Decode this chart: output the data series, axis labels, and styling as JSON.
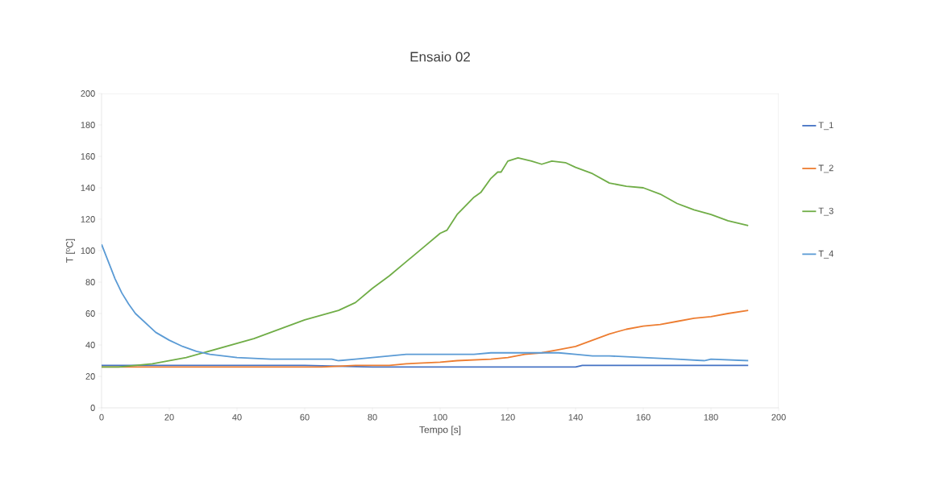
{
  "chart_data": {
    "type": "line",
    "title": "Ensaio 02",
    "xlabel": "Tempo [s]",
    "ylabel": "T [ºC]",
    "xlim": [
      0,
      200
    ],
    "xticks": [
      0,
      20,
      40,
      60,
      80,
      100,
      120,
      140,
      160,
      180,
      200
    ],
    "ylim": [
      0,
      200
    ],
    "yticks": [
      0,
      20,
      40,
      60,
      80,
      100,
      120,
      140,
      160,
      180,
      200
    ],
    "grid": false,
    "legend": "right",
    "marker": "none",
    "line_style": "solid",
    "series": [
      {
        "name": "T_1",
        "color": "#4472c4",
        "x": [
          0,
          20,
          40,
          60,
          80,
          100,
          120,
          140,
          142,
          160,
          180,
          191
        ],
        "values": [
          27,
          27,
          27,
          27,
          26,
          26,
          26,
          26,
          27,
          27,
          27,
          27
        ]
      },
      {
        "name": "T_2",
        "color": "#ed7d31",
        "x": [
          0,
          20,
          40,
          65,
          75,
          85,
          90,
          100,
          105,
          115,
          120,
          125,
          130,
          135,
          140,
          145,
          150,
          155,
          160,
          165,
          170,
          175,
          180,
          185,
          191
        ],
        "values": [
          26,
          26,
          26,
          26,
          27,
          27,
          28,
          29,
          30,
          31,
          32,
          34,
          35,
          37,
          39,
          43,
          47,
          50,
          52,
          53,
          55,
          57,
          58,
          60,
          62
        ]
      },
      {
        "name": "T_3",
        "color": "#70ad47",
        "x": [
          0,
          5,
          10,
          15,
          20,
          25,
          30,
          35,
          40,
          45,
          50,
          55,
          60,
          65,
          70,
          75,
          80,
          85,
          90,
          95,
          100,
          102,
          105,
          110,
          112,
          115,
          117,
          118,
          120,
          123,
          127,
          130,
          133,
          137,
          140,
          145,
          150,
          155,
          160,
          165,
          170,
          175,
          180,
          185,
          191
        ],
        "values": [
          26,
          26,
          27,
          28,
          30,
          32,
          35,
          38,
          41,
          44,
          48,
          52,
          56,
          59,
          62,
          67,
          76,
          84,
          93,
          102,
          111,
          113,
          123,
          134,
          137,
          146,
          150,
          150,
          157,
          159,
          157,
          155,
          157,
          156,
          153,
          149,
          143,
          141,
          140,
          136,
          130,
          126,
          123,
          119,
          116
        ]
      },
      {
        "name": "T_4",
        "color": "#5b9bd5",
        "x": [
          0,
          2,
          4,
          6,
          8,
          10,
          13,
          16,
          20,
          24,
          28,
          32,
          36,
          40,
          45,
          50,
          60,
          68,
          70,
          75,
          80,
          85,
          90,
          100,
          110,
          115,
          125,
          130,
          135,
          140,
          145,
          150,
          160,
          170,
          178,
          180,
          191
        ],
        "values": [
          104,
          93,
          82,
          73,
          66,
          60,
          54,
          48,
          43,
          39,
          36,
          34,
          33,
          32,
          31.5,
          31,
          31,
          31,
          30,
          31,
          32,
          33,
          34,
          34,
          34,
          35,
          35,
          35,
          35,
          34,
          33,
          33,
          32,
          31,
          30,
          31,
          30
        ]
      }
    ]
  }
}
